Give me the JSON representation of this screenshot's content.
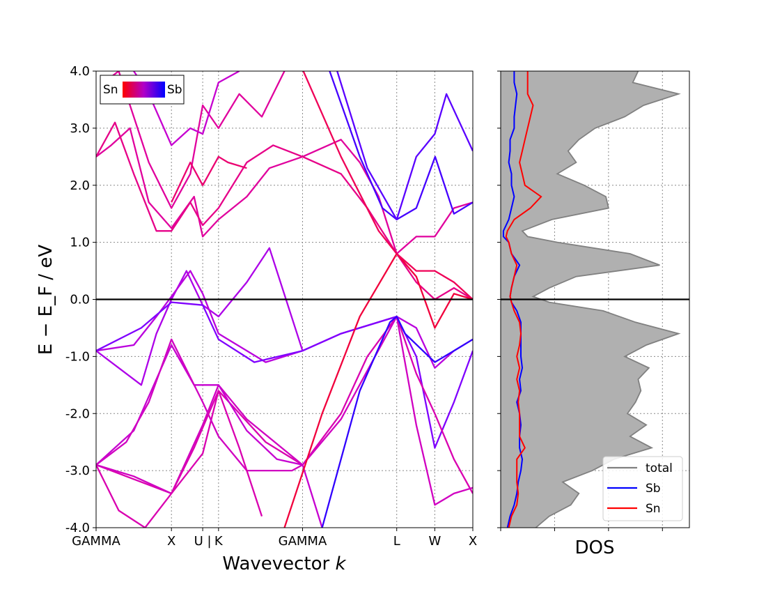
{
  "chart_data": [
    {
      "type": "line",
      "panel": "band-structure",
      "xlabel_prefix": "Wavevector ",
      "xlabel_var": "k",
      "ylabel": "E − E_F / eV",
      "ylim": [
        -4.0,
        4.0
      ],
      "y_ticks": [
        "4.0",
        "3.0",
        "2.0",
        "1.0",
        "0.0",
        "-1.0",
        "-2.0",
        "-3.0",
        "-4.0"
      ],
      "x_ticks": [
        "GAMMA",
        "X",
        "U |",
        "K",
        "GAMMA",
        "L",
        "W",
        "X"
      ],
      "k_points": [
        0,
        0.2,
        0.283,
        0.325,
        0.548,
        0.798,
        0.899,
        1.0
      ],
      "grid": true,
      "fermi_level": 0.0,
      "colorbar_legend": {
        "left": "Sn",
        "right": "Sb",
        "placement": "top-left"
      },
      "colors": {
        "Sn": "#ff0000",
        "Sb": "#0000ff"
      },
      "bands": [
        {
          "w": 0.55,
          "x": [
            0,
            0.06,
            0.12,
            0.16,
            0.2,
            0.24,
            0.283,
            0.325,
            0.4,
            0.46,
            0.548
          ],
          "y": [
            -0.9,
            -1.2,
            -1.5,
            -0.6,
            0.0,
            0.5,
            -0.1,
            -0.3,
            0.3,
            0.9,
            -0.9
          ]
        },
        {
          "w": 0.5,
          "x": [
            0,
            0.1,
            0.16,
            0.2,
            0.25,
            0.283,
            0.325,
            0.45,
            0.548,
            0.65,
            0.798,
            0.85,
            0.899,
            0.95,
            1.0
          ],
          "y": [
            -0.9,
            -0.8,
            -0.3,
            0.05,
            0.5,
            0.1,
            -0.6,
            -1.1,
            -0.9,
            -0.6,
            -0.3,
            -0.5,
            -1.2,
            -0.9,
            -0.7
          ]
        },
        {
          "w": 0.7,
          "x": [
            0,
            0.12,
            0.2,
            0.283,
            0.325,
            0.42,
            0.548,
            0.65,
            0.798,
            0.85,
            0.899,
            0.95,
            1.0
          ],
          "y": [
            -0.9,
            -0.5,
            -0.05,
            -0.1,
            -0.7,
            -1.1,
            -0.9,
            -0.6,
            -0.3,
            -1.0,
            -2.6,
            -1.8,
            -0.9
          ]
        },
        {
          "w": 0.35,
          "x": [
            0,
            0.2,
            0.283,
            0.325,
            0.45,
            0.548,
            0.65,
            0.72,
            0.798,
            0.85,
            0.899,
            0.95,
            1.0
          ],
          "y": [
            -2.9,
            -3.4,
            -2.7,
            -1.6,
            -2.5,
            -2.9,
            -2.0,
            -1.0,
            -0.3,
            -1.3,
            -2.0,
            -2.8,
            -3.4
          ]
        },
        {
          "w": 0.4,
          "x": [
            0,
            0.1,
            0.2,
            0.283,
            0.325,
            0.4,
            0.548,
            0.65,
            0.798,
            0.85,
            0.899,
            0.95,
            1.0
          ],
          "y": [
            -2.9,
            -3.1,
            -3.4,
            -2.2,
            -1.5,
            -2.1,
            -2.9,
            -2.1,
            -0.3,
            -2.2,
            -3.6,
            -3.4,
            -3.3
          ]
        },
        {
          "w": 0.45,
          "x": [
            0,
            0.1,
            0.2,
            0.26,
            0.325,
            0.4,
            0.48,
            0.548,
            0.6
          ],
          "y": [
            -2.9,
            -2.3,
            -0.8,
            -1.5,
            -1.5,
            -2.3,
            -2.8,
            -2.9,
            -4.0
          ]
        },
        {
          "w": 0.4,
          "x": [
            0,
            0.08,
            0.14,
            0.2,
            0.283,
            0.325,
            0.4,
            0.52,
            0.548
          ],
          "y": [
            -2.9,
            -2.5,
            -1.8,
            -0.7,
            -1.8,
            -2.4,
            -3.0,
            -3.0,
            -2.9
          ]
        },
        {
          "w": 0.35,
          "x": [
            0,
            0.06,
            0.13,
            0.2,
            0.26,
            0.325,
            0.38,
            0.44
          ],
          "y": [
            -2.9,
            -3.7,
            -4.0,
            -3.4,
            -2.6,
            -1.6,
            -2.6,
            -3.8
          ]
        },
        {
          "w": 0.3,
          "x": [
            0,
            0.04,
            0.09,
            0.14,
            0.2,
            0.26,
            0.283,
            0.325,
            0.4,
            0.46,
            0.548,
            0.65,
            0.7,
            0.75,
            0.798,
            0.85,
            0.899,
            0.95,
            1.0
          ],
          "y": [
            2.5,
            2.7,
            3.0,
            1.7,
            1.25,
            1.8,
            1.1,
            1.4,
            1.8,
            2.3,
            2.5,
            2.8,
            2.4,
            1.8,
            0.8,
            1.1,
            1.1,
            1.6,
            1.7
          ]
        },
        {
          "w": 0.25,
          "x": [
            0,
            0.05,
            0.1,
            0.16,
            0.2,
            0.25,
            0.283,
            0.325,
            0.4,
            0.47,
            0.548,
            0.65,
            0.72,
            0.798,
            0.85,
            0.899,
            0.95,
            1.0
          ],
          "y": [
            2.5,
            3.1,
            2.2,
            1.2,
            1.2,
            1.7,
            1.3,
            1.6,
            2.4,
            2.7,
            2.5,
            2.2,
            1.6,
            0.8,
            0.3,
            0.0,
            0.2,
            0.0
          ]
        },
        {
          "w": 0.1,
          "x": [
            0.5,
            0.6,
            0.7,
            0.798,
            0.85,
            0.899,
            0.95,
            1.0
          ],
          "y": [
            -4.0,
            -2.0,
            -0.3,
            0.8,
            0.4,
            -0.5,
            0.1,
            0.0
          ]
        },
        {
          "w": 0.85,
          "x": [
            0.62,
            0.7,
            0.76,
            0.798,
            0.85,
            0.9,
            0.95,
            1.0
          ],
          "y": [
            4.0,
            2.5,
            1.6,
            1.4,
            1.6,
            2.5,
            1.5,
            1.7
          ]
        },
        {
          "w": 0.8,
          "x": [
            0.64,
            0.72,
            0.798,
            0.85,
            0.899,
            0.93,
            1.0
          ],
          "y": [
            4.0,
            2.3,
            1.4,
            2.5,
            2.9,
            3.6,
            2.6
          ]
        },
        {
          "w": 0.15,
          "x": [
            0.55,
            0.65,
            0.75,
            0.798,
            0.85,
            0.899,
            0.95,
            1.0
          ],
          "y": [
            4.0,
            2.5,
            1.2,
            0.8,
            0.5,
            0.5,
            0.3,
            0.0
          ]
        },
        {
          "w": 0.9,
          "x": [
            0.6,
            0.7,
            0.78,
            0.798,
            0.82,
            0.899,
            0.95,
            1.0
          ],
          "y": [
            -4.0,
            -1.6,
            -0.4,
            -0.3,
            -0.6,
            -1.1,
            -0.9,
            -0.7
          ]
        },
        {
          "w": 0.3,
          "x": [
            0.02,
            0.06,
            0.1,
            0.14,
            0.2,
            0.25,
            0.283,
            0.325,
            0.38,
            0.44,
            0.5
          ],
          "y": [
            3.8,
            4.0,
            3.2,
            2.4,
            1.6,
            2.2,
            3.4,
            3.0,
            3.6,
            3.2,
            4.0
          ]
        },
        {
          "w": 0.45,
          "x": [
            0.1,
            0.14,
            0.2,
            0.25,
            0.283,
            0.325,
            0.38
          ],
          "y": [
            4.0,
            3.6,
            2.7,
            3.0,
            2.9,
            3.8,
            4.0
          ]
        },
        {
          "w": 0.2,
          "x": [
            0.2,
            0.25,
            0.283,
            0.325,
            0.35,
            0.4
          ],
          "y": [
            1.7,
            2.4,
            2.0,
            2.5,
            2.4,
            2.3
          ]
        }
      ]
    },
    {
      "type": "area",
      "panel": "density-of-states",
      "xlabel": "DOS",
      "ylim": [
        -4.0,
        4.0
      ],
      "legend": [
        "total",
        "Sb",
        "Sn"
      ],
      "legend_placement": "lower-right",
      "grid": true,
      "colors": {
        "total": "#808080",
        "total_fill": "#b0b0b0",
        "Sb": "#0000ff",
        "Sn": "#ff0000"
      },
      "xlim": [
        0,
        7
      ],
      "energy": [
        -4.0,
        -3.8,
        -3.6,
        -3.4,
        -3.2,
        -3.0,
        -2.8,
        -2.6,
        -2.4,
        -2.2,
        -2.0,
        -1.8,
        -1.6,
        -1.4,
        -1.2,
        -1.0,
        -0.8,
        -0.6,
        -0.4,
        -0.2,
        -0.05,
        0.05,
        0.2,
        0.4,
        0.6,
        0.8,
        1.0,
        1.1,
        1.2,
        1.4,
        1.6,
        1.8,
        2.0,
        2.2,
        2.4,
        2.6,
        2.8,
        3.0,
        3.2,
        3.4,
        3.6,
        3.8,
        4.0
      ],
      "total": [
        1.3,
        1.8,
        2.6,
        2.9,
        2.3,
        3.4,
        4.2,
        5.6,
        4.8,
        5.4,
        4.7,
        5.0,
        5.2,
        5.1,
        5.5,
        4.6,
        5.4,
        6.6,
        5.0,
        3.8,
        1.8,
        1.2,
        1.8,
        2.8,
        5.9,
        4.8,
        2.1,
        1.0,
        0.8,
        1.9,
        4.0,
        3.9,
        3.1,
        2.1,
        2.8,
        2.5,
        2.9,
        3.5,
        4.6,
        5.3,
        6.6,
        4.9,
        5.1
      ],
      "Sb": [
        0.25,
        0.35,
        0.5,
        0.6,
        0.65,
        0.75,
        0.8,
        0.7,
        0.7,
        0.75,
        0.7,
        0.6,
        0.75,
        0.7,
        0.8,
        0.75,
        0.75,
        0.75,
        0.75,
        0.6,
        0.4,
        0.35,
        0.4,
        0.5,
        0.7,
        0.4,
        0.3,
        0.1,
        0.1,
        0.3,
        0.4,
        0.5,
        0.4,
        0.4,
        0.3,
        0.35,
        0.35,
        0.5,
        0.5,
        0.55,
        0.6,
        0.5,
        0.5
      ],
      "Sn": [
        0.3,
        0.4,
        0.6,
        0.65,
        0.6,
        0.6,
        0.6,
        0.9,
        0.7,
        0.7,
        0.7,
        0.65,
        0.7,
        0.6,
        0.7,
        0.6,
        0.7,
        0.75,
        0.7,
        0.5,
        0.4,
        0.35,
        0.4,
        0.5,
        0.6,
        0.4,
        0.3,
        0.2,
        0.25,
        0.5,
        1.1,
        1.5,
        0.9,
        0.8,
        0.7,
        0.8,
        0.9,
        1.0,
        1.1,
        1.2,
        1.0,
        1.0,
        1.0
      ]
    }
  ]
}
